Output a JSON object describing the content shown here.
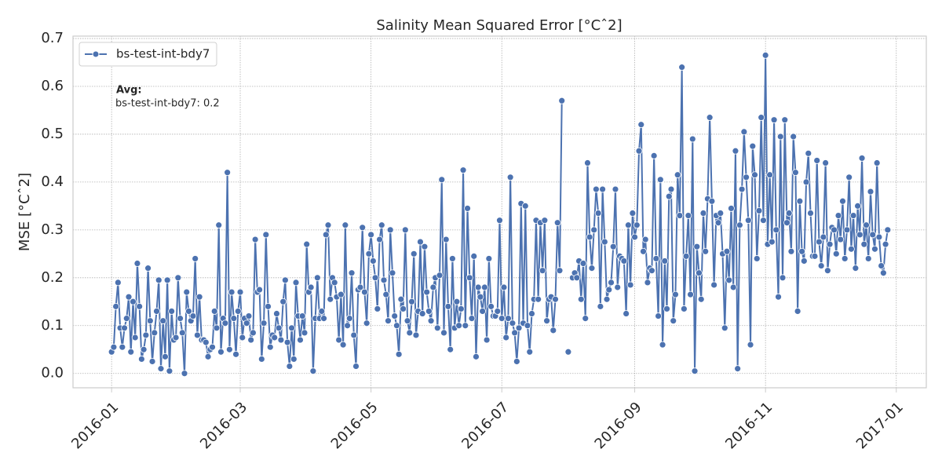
{
  "chart_data": {
    "type": "line",
    "title": "Salinity Mean Squared Error [°Cˆ2]",
    "y_label": "MSE [°Cˆ2]",
    "annotation_title": "Avg:",
    "annotation": "bs-test-int-bdy7: 0.2",
    "legend_position": "upper left",
    "grid": true,
    "xlim": [
      "2015-12-14",
      "2017-01-15"
    ],
    "xticks": [
      {
        "value": "2016-01-01",
        "label": "2016-01"
      },
      {
        "value": "2016-03-01",
        "label": "2016-03"
      },
      {
        "value": "2016-05-01",
        "label": "2016-05"
      },
      {
        "value": "2016-07-01",
        "label": "2016-07"
      },
      {
        "value": "2016-09-01",
        "label": "2016-09"
      },
      {
        "value": "2016-11-01",
        "label": "2016-11"
      },
      {
        "value": "2017-01-01",
        "label": "2017-01"
      }
    ],
    "ylim": [
      -0.03,
      0.705
    ],
    "yticks": [
      {
        "value": 0,
        "label": "0.0"
      },
      0.1,
      0.2,
      0.3,
      0.4,
      0.5,
      0.6,
      0.7
    ],
    "x": [
      "2016-01-01",
      "2016-01-02",
      "2016-01-03",
      "2016-01-04",
      "2016-01-05",
      "2016-01-06",
      "2016-01-07",
      "2016-01-08",
      "2016-01-09",
      "2016-01-10",
      "2016-01-11",
      "2016-01-12",
      "2016-01-13",
      "2016-01-14",
      "2016-01-15",
      "2016-01-16",
      "2016-01-17",
      "2016-01-18",
      "2016-01-19",
      "2016-01-20",
      "2016-01-21",
      "2016-01-22",
      "2016-01-23",
      "2016-01-24",
      "2016-01-25",
      "2016-01-26",
      "2016-01-27",
      "2016-01-28",
      "2016-01-29",
      "2016-01-30",
      "2016-01-31",
      "2016-02-01",
      "2016-02-02",
      "2016-02-03",
      "2016-02-04",
      "2016-02-05",
      "2016-02-06",
      "2016-02-07",
      "2016-02-08",
      "2016-02-09",
      "2016-02-10",
      "2016-02-11",
      "2016-02-12",
      "2016-02-13",
      "2016-02-14",
      "2016-02-15",
      "2016-02-16",
      "2016-02-17",
      "2016-02-18",
      "2016-02-19",
      "2016-02-20",
      "2016-02-21",
      "2016-02-22",
      "2016-02-23",
      "2016-02-24",
      "2016-02-25",
      "2016-02-26",
      "2016-02-27",
      "2016-02-28",
      "2016-02-29",
      "2016-03-01",
      "2016-03-02",
      "2016-03-03",
      "2016-03-04",
      "2016-03-05",
      "2016-03-06",
      "2016-03-07",
      "2016-03-08",
      "2016-03-09",
      "2016-03-10",
      "2016-03-11",
      "2016-03-12",
      "2016-03-13",
      "2016-03-14",
      "2016-03-15",
      "2016-03-16",
      "2016-03-17",
      "2016-03-18",
      "2016-03-19",
      "2016-03-20",
      "2016-03-21",
      "2016-03-22",
      "2016-03-23",
      "2016-03-24",
      "2016-03-25",
      "2016-03-26",
      "2016-03-27",
      "2016-03-28",
      "2016-03-29",
      "2016-03-30",
      "2016-03-31",
      "2016-04-01",
      "2016-04-02",
      "2016-04-03",
      "2016-04-04",
      "2016-04-05",
      "2016-04-06",
      "2016-04-07",
      "2016-04-08",
      "2016-04-09",
      "2016-04-10",
      "2016-04-11",
      "2016-04-12",
      "2016-04-13",
      "2016-04-14",
      "2016-04-15",
      "2016-04-16",
      "2016-04-17",
      "2016-04-18",
      "2016-04-19",
      "2016-04-20",
      "2016-04-21",
      "2016-04-22",
      "2016-04-23",
      "2016-04-24",
      "2016-04-25",
      "2016-04-26",
      "2016-04-27",
      "2016-04-28",
      "2016-04-29",
      "2016-04-30",
      "2016-05-01",
      "2016-05-02",
      "2016-05-03",
      "2016-05-04",
      "2016-05-05",
      "2016-05-06",
      "2016-05-07",
      "2016-05-08",
      "2016-05-09",
      "2016-05-10",
      "2016-05-11",
      "2016-05-12",
      "2016-05-13",
      "2016-05-14",
      "2016-05-15",
      "2016-05-16",
      "2016-05-17",
      "2016-05-18",
      "2016-05-19",
      "2016-05-20",
      "2016-05-21",
      "2016-05-22",
      "2016-05-23",
      "2016-05-24",
      "2016-05-25",
      "2016-05-26",
      "2016-05-27",
      "2016-05-28",
      "2016-05-29",
      "2016-05-30",
      "2016-05-31",
      "2016-06-01",
      "2016-06-02",
      "2016-06-03",
      "2016-06-04",
      "2016-06-05",
      "2016-06-06",
      "2016-06-07",
      "2016-06-08",
      "2016-06-09",
      "2016-06-10",
      "2016-06-11",
      "2016-06-12",
      "2016-06-13",
      "2016-06-14",
      "2016-06-15",
      "2016-06-16",
      "2016-06-17",
      "2016-06-18",
      "2016-06-19",
      "2016-06-20",
      "2016-06-21",
      "2016-06-22",
      "2016-06-23",
      "2016-06-24",
      "2016-06-25",
      "2016-06-26",
      "2016-06-27",
      "2016-06-28",
      "2016-06-29",
      "2016-06-30",
      "2016-07-01",
      "2016-07-02",
      "2016-07-03",
      "2016-07-04",
      "2016-07-05",
      "2016-07-06",
      "2016-07-07",
      "2016-07-08",
      "2016-07-09",
      "2016-07-10",
      "2016-07-11",
      "2016-07-12",
      "2016-07-13",
      "2016-07-14",
      "2016-07-15",
      "2016-07-16",
      "2016-07-17",
      "2016-07-18",
      "2016-07-19",
      "2016-07-20",
      "2016-07-21",
      "2016-07-22",
      "2016-07-23",
      "2016-07-24",
      "2016-07-25",
      "2016-07-26",
      "2016-07-27",
      "2016-07-28",
      "2016-07-29",
      "2016-07-30",
      "2016-07-31",
      "2016-08-01",
      "2016-08-02",
      "2016-08-03",
      "2016-08-04",
      "2016-08-05",
      "2016-08-06",
      "2016-08-07",
      "2016-08-08",
      "2016-08-09",
      "2016-08-10",
      "2016-08-11",
      "2016-08-12",
      "2016-08-13",
      "2016-08-14",
      "2016-08-15",
      "2016-08-16",
      "2016-08-17",
      "2016-08-18",
      "2016-08-19",
      "2016-08-20",
      "2016-08-21",
      "2016-08-22",
      "2016-08-23",
      "2016-08-24",
      "2016-08-25",
      "2016-08-26",
      "2016-08-27",
      "2016-08-28",
      "2016-08-29",
      "2016-08-30",
      "2016-08-31",
      "2016-09-01",
      "2016-09-02",
      "2016-09-03",
      "2016-09-04",
      "2016-09-05",
      "2016-09-06",
      "2016-09-07",
      "2016-09-08",
      "2016-09-09",
      "2016-09-10",
      "2016-09-11",
      "2016-09-12",
      "2016-09-13",
      "2016-09-14",
      "2016-09-15",
      "2016-09-16",
      "2016-09-17",
      "2016-09-18",
      "2016-09-19",
      "2016-09-20",
      "2016-09-21",
      "2016-09-22",
      "2016-09-23",
      "2016-09-24",
      "2016-09-25",
      "2016-09-26",
      "2016-09-27",
      "2016-09-28",
      "2016-09-29",
      "2016-09-30",
      "2016-10-01",
      "2016-10-02",
      "2016-10-03",
      "2016-10-04",
      "2016-10-05",
      "2016-10-06",
      "2016-10-07",
      "2016-10-08",
      "2016-10-09",
      "2016-10-10",
      "2016-10-11",
      "2016-10-12",
      "2016-10-13",
      "2016-10-14",
      "2016-10-15",
      "2016-10-16",
      "2016-10-17",
      "2016-10-18",
      "2016-10-19",
      "2016-10-20",
      "2016-10-21",
      "2016-10-22",
      "2016-10-23",
      "2016-10-24",
      "2016-10-25",
      "2016-10-26",
      "2016-10-27",
      "2016-10-28",
      "2016-10-29",
      "2016-10-30",
      "2016-10-31",
      "2016-11-01",
      "2016-11-02",
      "2016-11-03",
      "2016-11-04",
      "2016-11-05",
      "2016-11-06",
      "2016-11-07",
      "2016-11-08",
      "2016-11-09",
      "2016-11-10",
      "2016-11-11",
      "2016-11-12",
      "2016-11-13",
      "2016-11-14",
      "2016-11-15",
      "2016-11-16",
      "2016-11-17",
      "2016-11-18",
      "2016-11-19",
      "2016-11-20",
      "2016-11-21",
      "2016-11-22",
      "2016-11-23",
      "2016-11-24",
      "2016-11-25",
      "2016-11-26",
      "2016-11-27",
      "2016-11-28",
      "2016-11-29",
      "2016-11-30",
      "2016-12-01",
      "2016-12-02",
      "2016-12-03",
      "2016-12-04",
      "2016-12-05",
      "2016-12-06",
      "2016-12-07",
      "2016-12-08",
      "2016-12-09",
      "2016-12-10",
      "2016-12-11",
      "2016-12-12",
      "2016-12-13",
      "2016-12-14",
      "2016-12-15",
      "2016-12-16",
      "2016-12-17",
      "2016-12-18",
      "2016-12-19",
      "2016-12-20",
      "2016-12-21",
      "2016-12-22",
      "2016-12-23",
      "2016-12-24",
      "2016-12-25",
      "2016-12-26",
      "2016-12-27",
      "2016-12-28"
    ],
    "series": [
      {
        "name": "bs-test-int-bdy7",
        "color": "#4c72b0",
        "values": [
          0.045,
          0.055,
          0.14,
          0.19,
          0.095,
          0.055,
          0.095,
          0.115,
          0.16,
          0.045,
          0.15,
          0.075,
          0.23,
          0.14,
          0.03,
          0.05,
          0.08,
          0.22,
          0.11,
          0.025,
          0.085,
          0.13,
          0.195,
          0.01,
          0.11,
          0.035,
          0.195,
          0.005,
          0.13,
          0.07,
          0.075,
          0.2,
          0.115,
          0.085,
          0.0,
          0.17,
          0.13,
          0.11,
          0.12,
          0.24,
          0.08,
          0.16,
          0.07,
          0.07,
          0.065,
          0.035,
          0.05,
          0.055,
          0.13,
          0.095,
          0.31,
          0.045,
          0.115,
          0.105,
          0.42,
          0.05,
          0.17,
          0.115,
          0.04,
          0.13,
          0.17,
          0.075,
          0.115,
          0.105,
          0.12,
          0.07,
          0.085,
          0.28,
          0.17,
          0.175,
          0.03,
          0.105,
          0.29,
          0.14,
          0.055,
          0.08,
          0.075,
          0.125,
          0.095,
          0.07,
          0.15,
          0.195,
          0.065,
          0.015,
          0.095,
          0.03,
          0.19,
          0.12,
          0.07,
          0.12,
          0.085,
          0.27,
          0.17,
          0.18,
          0.005,
          0.115,
          0.2,
          0.115,
          0.13,
          0.115,
          0.29,
          0.31,
          0.155,
          0.2,
          0.19,
          0.16,
          0.07,
          0.165,
          0.06,
          0.31,
          0.1,
          0.115,
          0.21,
          0.08,
          0.015,
          0.175,
          0.18,
          0.305,
          0.17,
          0.105,
          0.25,
          0.29,
          0.235,
          0.2,
          0.135,
          0.28,
          0.31,
          0.195,
          0.165,
          0.11,
          0.3,
          0.21,
          0.12,
          0.1,
          0.04,
          0.155,
          0.135,
          0.3,
          0.11,
          0.085,
          0.15,
          0.25,
          0.08,
          0.13,
          0.275,
          0.125,
          0.265,
          0.17,
          0.13,
          0.11,
          0.18,
          0.2,
          0.095,
          0.205,
          0.405,
          0.085,
          0.28,
          0.14,
          0.05,
          0.24,
          0.095,
          0.15,
          0.1,
          0.135,
          0.425,
          0.1,
          0.345,
          0.2,
          0.115,
          0.245,
          0.035,
          0.18,
          0.16,
          0.13,
          0.18,
          0.07,
          0.24,
          0.14,
          0.12,
          0.12,
          0.13,
          0.32,
          0.115,
          0.18,
          0.075,
          0.115,
          0.41,
          0.105,
          0.085,
          0.025,
          0.095,
          0.355,
          0.105,
          0.35,
          0.1,
          0.045,
          0.125,
          0.155,
          0.32,
          0.155,
          0.315,
          0.215,
          0.32,
          0.11,
          0.155,
          0.16,
          0.09,
          0.155,
          0.315,
          0.215,
          0.57,
          null,
          null,
          0.045,
          null,
          0.2,
          0.21,
          0.2,
          0.235,
          0.155,
          0.23,
          0.115,
          0.44,
          0.285,
          0.22,
          0.3,
          0.385,
          0.335,
          0.14,
          0.385,
          0.275,
          0.155,
          0.175,
          0.19,
          0.265,
          0.385,
          0.18,
          0.245,
          0.24,
          0.235,
          0.125,
          0.31,
          0.185,
          0.335,
          0.285,
          0.31,
          0.465,
          0.52,
          0.255,
          0.28,
          0.19,
          0.22,
          0.215,
          0.455,
          0.24,
          0.12,
          0.405,
          0.06,
          0.235,
          0.135,
          0.37,
          0.385,
          0.11,
          0.165,
          0.415,
          0.33,
          0.64,
          0.135,
          0.245,
          0.33,
          0.165,
          0.49,
          0.005,
          0.265,
          0.21,
          0.155,
          0.335,
          0.255,
          0.365,
          0.535,
          0.36,
          0.185,
          0.33,
          0.315,
          0.335,
          0.25,
          0.095,
          0.255,
          0.195,
          0.345,
          0.18,
          0.465,
          0.01,
          0.31,
          0.385,
          0.505,
          0.41,
          0.32,
          0.06,
          0.475,
          0.415,
          0.24,
          0.34,
          0.535,
          0.32,
          0.665,
          0.27,
          0.415,
          0.275,
          0.53,
          0.3,
          0.16,
          0.495,
          0.2,
          0.53,
          0.315,
          0.335,
          0.255,
          0.495,
          0.42,
          0.13,
          0.36,
          0.255,
          0.235,
          0.4,
          0.46,
          0.335,
          0.245,
          0.245,
          0.445,
          0.275,
          0.225,
          0.285,
          0.44,
          0.215,
          0.27,
          0.305,
          0.3,
          0.25,
          0.33,
          0.28,
          0.36,
          0.24,
          0.3,
          0.41,
          0.26,
          0.33,
          0.22,
          0.35,
          0.29,
          0.45,
          0.27,
          0.31,
          0.24,
          0.38,
          0.29,
          0.26,
          0.44,
          0.285,
          0.225,
          0.21,
          0.27,
          0.3
        ]
      }
    ]
  }
}
